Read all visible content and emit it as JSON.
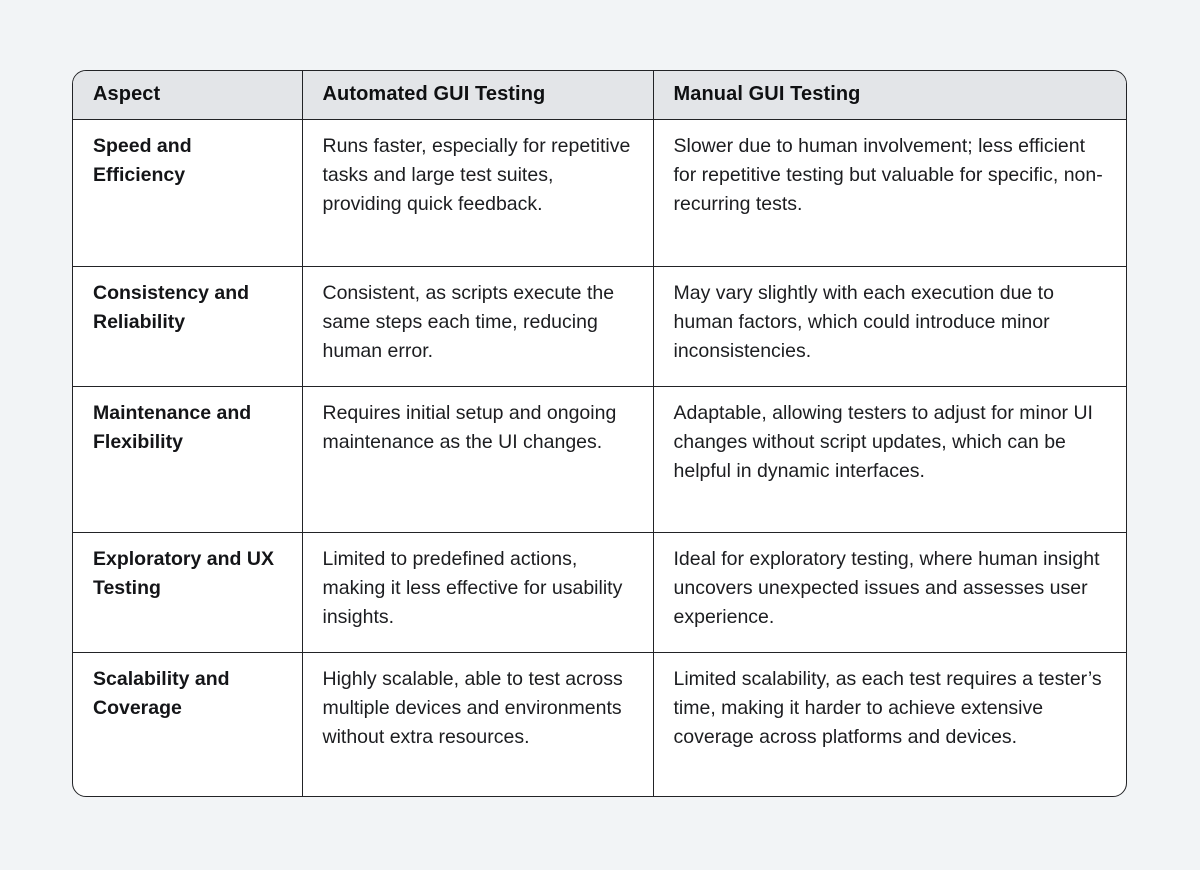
{
  "page": {
    "background_color": "#f2f4f6",
    "table_background_color": "#ffffff",
    "header_background_color": "#e3e5e8",
    "border_color": "#222326"
  },
  "table": {
    "columns": [
      "Aspect",
      "Automated GUI Testing",
      "Manual GUI Testing"
    ],
    "rows": [
      {
        "aspect": "Speed and Efficiency",
        "automated": "Runs faster, especially for repetitive tasks and large test suites, providing quick feedback.",
        "manual": "Slower due to human involvement; less efficient for repetitive testing but valuable for specific, non-recurring tests."
      },
      {
        "aspect": "Consistency and Reliability",
        "automated": "Consistent, as scripts execute the same steps each time, reducing human error.",
        "manual": "May vary slightly with each execution due to human factors, which could introduce minor inconsistencies."
      },
      {
        "aspect": "Maintenance and Flexibility",
        "automated": "Requires initial setup and ongoing maintenance as the UI changes.",
        "manual": "Adaptable, allowing testers to adjust for minor UI changes without script updates, which can be helpful in dynamic interfaces."
      },
      {
        "aspect": "Exploratory and UX Testing",
        "automated": "Limited to predefined actions, making it less effective for usability insights.",
        "manual": "Ideal for exploratory testing, where human insight uncovers unexpected issues and assesses user experience."
      },
      {
        "aspect": "Scalability and Coverage",
        "automated": "Highly scalable, able to test across multiple devices and environments without extra resources.",
        "manual": "Limited scalability, as each test requires a tester’s time, making it harder to achieve extensive coverage across platforms and devices."
      }
    ]
  }
}
